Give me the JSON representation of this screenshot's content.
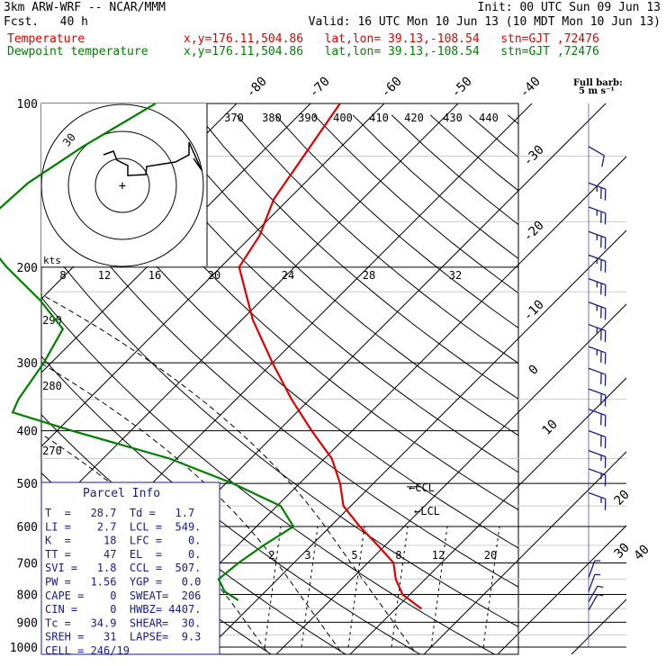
{
  "header": {
    "model": "3km ARW-WRF -- NCAR/MMM",
    "forecast": "Fcst.   40 h",
    "init": "Init: 00 UTC Sun 09 Jun 13",
    "valid": "Valid: 16 UTC Mon 10 Jun 13 (10 MDT Mon 10 Jun 13)",
    "temp_label": "Temperature",
    "dew_label": "Dewpoint temperature",
    "temp_loc": "x,y=176.11,504.86   lat,lon= 39.13,-108.54   stn=GJT ,72476",
    "dew_loc": "x,y=176.11,504.86   lat,lon= 39.13,-108.54   stn=GJT ,72476"
  },
  "wind_legend": {
    "title": "Full barb:",
    "value": "5 m s⁻¹"
  },
  "parcel_info": {
    "title": "Parcel Info",
    "rows": [
      "T  =   28.7  Td =   1.7",
      "LI =    2.7  LCL =  549.",
      "K  =     18  LFC =    0.",
      "TT =     47  EL  =    0.",
      "SVI =   1.8  CCL =  507.",
      "PW =   1.56  YGP =   0.0",
      "CAPE =    0  SWEAT=  206",
      "CIN =     0  HWBZ= 4407.",
      "Tc =   34.9  SHEAR=  30.",
      "SREH =   31  LAPSE=  9.3",
      "CELL = 246/19"
    ]
  },
  "chart_data": {
    "type": "line",
    "subtype": "skew-T log-P sounding",
    "y_axis": {
      "label": "pressure (hPa)",
      "scale": "log",
      "ticks": [
        100,
        200,
        300,
        400,
        500,
        600,
        700,
        800,
        900,
        1000
      ]
    },
    "isotherm_labels": [
      "-80",
      "-70",
      "-60",
      "-50",
      "-40",
      "-30",
      "-20",
      "-10",
      "0",
      "10",
      "20",
      "30",
      "40"
    ],
    "theta_labels": [
      "370",
      "380",
      "390",
      "400",
      "410",
      "420",
      "430",
      "440"
    ],
    "theta_left_labels": [
      "290",
      "280",
      "270"
    ],
    "mixing_ratio_labels": [
      "2",
      "3",
      "5",
      "8",
      "12",
      "20"
    ],
    "hodograph": {
      "unit": "kts",
      "ring_label": "30",
      "speed_labels": [
        "8",
        "12",
        "16",
        "20",
        "24",
        "28",
        "32"
      ]
    },
    "markers": {
      "lcl": "LCL",
      "ccl": "CCL"
    },
    "series": [
      {
        "name": "Temperature",
        "color": "#e00000",
        "points": [
          [
            100,
            -56.0
          ],
          [
            150,
            -52.0
          ],
          [
            175,
            -49.0
          ],
          [
            200,
            -47.5
          ],
          [
            250,
            -38.5
          ],
          [
            300,
            -30.0
          ],
          [
            350,
            -22.5
          ],
          [
            400,
            -15.5
          ],
          [
            450,
            -9.0
          ],
          [
            500,
            -4.5
          ],
          [
            550,
            -1.0
          ],
          [
            600,
            4.0
          ],
          [
            650,
            9.0
          ],
          [
            700,
            13.5
          ],
          [
            750,
            16.0
          ],
          [
            800,
            19.0
          ],
          [
            850,
            23.5
          ]
        ]
      },
      {
        "name": "Dewpoint temperature",
        "color": "#008000",
        "points": [
          [
            100,
            -81.0
          ],
          [
            120,
            -85.0
          ],
          [
            140,
            -87.5
          ],
          [
            160,
            -88.0
          ],
          [
            185,
            -83.5
          ],
          [
            200,
            -79.0
          ],
          [
            230,
            -70.0
          ],
          [
            260,
            -63.0
          ],
          [
            300,
            -61.0
          ],
          [
            350,
            -59.5
          ],
          [
            370,
            -58.5
          ],
          [
            400,
            -48.0
          ],
          [
            450,
            -31.0
          ],
          [
            500,
            -19.0
          ],
          [
            550,
            -9.5
          ],
          [
            600,
            -5.0
          ],
          [
            650,
            -6.5
          ],
          [
            700,
            -7.5
          ],
          [
            750,
            -8.0
          ],
          [
            790,
            -5.5
          ],
          [
            820,
            -2.5
          ]
        ]
      }
    ],
    "wind_barbs": [
      {
        "p": 120,
        "spd": 10,
        "dir": 300
      },
      {
        "p": 140,
        "spd": 25,
        "dir": 290
      },
      {
        "p": 155,
        "spd": 25,
        "dir": 290
      },
      {
        "p": 172,
        "spd": 25,
        "dir": 290
      },
      {
        "p": 190,
        "spd": 25,
        "dir": 290
      },
      {
        "p": 210,
        "spd": 25,
        "dir": 290
      },
      {
        "p": 232,
        "spd": 25,
        "dir": 290
      },
      {
        "p": 255,
        "spd": 25,
        "dir": 290
      },
      {
        "p": 280,
        "spd": 25,
        "dir": 290
      },
      {
        "p": 307,
        "spd": 20,
        "dir": 290
      },
      {
        "p": 335,
        "spd": 20,
        "dir": 290
      },
      {
        "p": 365,
        "spd": 20,
        "dir": 290
      },
      {
        "p": 400,
        "spd": 20,
        "dir": 290
      },
      {
        "p": 435,
        "spd": 15,
        "dir": 290
      },
      {
        "p": 470,
        "spd": 15,
        "dir": 290
      },
      {
        "p": 520,
        "spd": 15,
        "dir": 290
      },
      {
        "p": 745,
        "spd": 5,
        "dir": 200
      },
      {
        "p": 790,
        "spd": 5,
        "dir": 200
      },
      {
        "p": 825,
        "spd": 5,
        "dir": 210
      },
      {
        "p": 855,
        "spd": 5,
        "dir": 210
      }
    ]
  },
  "colors": {
    "temperature": "#e00000",
    "dewpoint": "#008000",
    "parcel_box": "#1a1a8c",
    "barbs": "#1a1a8c",
    "grid": "#000000",
    "theta_e": "#bbbbbb"
  }
}
